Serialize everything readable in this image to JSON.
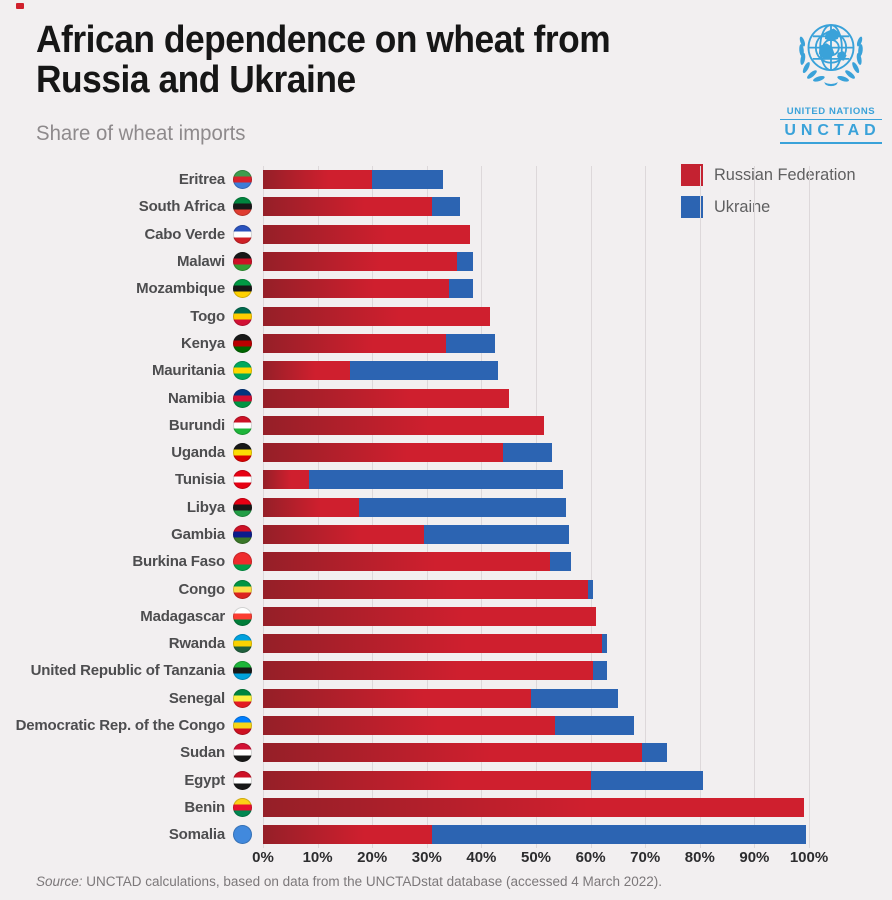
{
  "header": {
    "title_line1": "African dependence on wheat from",
    "title_line2": "Russia and Ukraine",
    "subtitle": "Share of wheat imports"
  },
  "logo": {
    "org": "UNITED NATIONS",
    "unit": "UNCTAD",
    "color": "#3aa2d9"
  },
  "legend": [
    {
      "label": "Russian Federation",
      "color": "#c42231"
    },
    {
      "label": "Ukraine",
      "color": "#2c64b2"
    }
  ],
  "colors": {
    "background": "#f2eff0",
    "russia": "#c42231",
    "russia_gradient_start": "#951f28",
    "russia_gradient_end": "#cf1f2e",
    "ukraine": "#2c64b2",
    "gridline": "#ddd8da"
  },
  "source": {
    "prefix": "Source:",
    "text": " UNCTAD calculations, based on data from the UNCTADstat database (accessed 4 March 2022)."
  },
  "chart_data": {
    "type": "bar",
    "orientation": "horizontal",
    "stacked": true,
    "title": "African dependence on wheat from Russia and Ukraine",
    "subtitle": "Share of wheat imports",
    "unit": "percent of wheat imports",
    "xlim": [
      0,
      100
    ],
    "x_ticks": [
      "0%",
      "10%",
      "20%",
      "30%",
      "40%",
      "50%",
      "60%",
      "70%",
      "80%",
      "90%",
      "100%"
    ],
    "grid": true,
    "legend_position": "top-right",
    "series_names": [
      "Russian Federation",
      "Ukraine"
    ],
    "countries": [
      {
        "name": "Eritrea",
        "russia": 20,
        "ukraine": 13,
        "flag": [
          "#3e9e4e",
          "#d8222c",
          "#3d7dd8"
        ]
      },
      {
        "name": "South Africa",
        "russia": 31,
        "ukraine": 5,
        "flag": [
          "#00853e",
          "#181818",
          "#e03c31"
        ]
      },
      {
        "name": "Cabo Verde",
        "russia": 38,
        "ukraine": 0,
        "flag": [
          "#2a52be",
          "#ffffff",
          "#cf2027"
        ]
      },
      {
        "name": "Malawi",
        "russia": 35.5,
        "ukraine": 3,
        "flag": [
          "#181818",
          "#ce1126",
          "#339e35"
        ]
      },
      {
        "name": "Mozambique",
        "russia": 34,
        "ukraine": 4.5,
        "flag": [
          "#009a44",
          "#181818",
          "#ffd100"
        ]
      },
      {
        "name": "Togo",
        "russia": 41.5,
        "ukraine": 0,
        "flag": [
          "#006a4e",
          "#ffce00",
          "#d21034"
        ]
      },
      {
        "name": "Kenya",
        "russia": 33.5,
        "ukraine": 9,
        "flag": [
          "#181818",
          "#bb0000",
          "#006600"
        ]
      },
      {
        "name": "Mauritania",
        "russia": 16,
        "ukraine": 27,
        "flag": [
          "#00a95c",
          "#ffd700",
          "#00a95c"
        ]
      },
      {
        "name": "Namibia",
        "russia": 45,
        "ukraine": 0,
        "flag": [
          "#003580",
          "#d21034",
          "#009543"
        ]
      },
      {
        "name": "Burundi",
        "russia": 51.5,
        "ukraine": 0,
        "flag": [
          "#ce1126",
          "#ffffff",
          "#1eb53a"
        ]
      },
      {
        "name": "Uganda",
        "russia": 44,
        "ukraine": 9,
        "flag": [
          "#181818",
          "#fcdc04",
          "#d90000"
        ]
      },
      {
        "name": "Tunisia",
        "russia": 8.5,
        "ukraine": 46.5,
        "flag": [
          "#e70013",
          "#ffffff",
          "#e70013"
        ]
      },
      {
        "name": "Libya",
        "russia": 17.5,
        "ukraine": 38,
        "flag": [
          "#e70013",
          "#181818",
          "#239e46"
        ]
      },
      {
        "name": "Gambia",
        "russia": 29.5,
        "ukraine": 26.5,
        "flag": [
          "#ce1126",
          "#0c1c8c",
          "#3a7728"
        ]
      },
      {
        "name": "Burkina Faso",
        "russia": 52.5,
        "ukraine": 4,
        "flag": [
          "#ef2b2d",
          "#ef2b2d",
          "#009e49"
        ]
      },
      {
        "name": "Congo",
        "russia": 59.5,
        "ukraine": 1,
        "flag": [
          "#009543",
          "#fbde4a",
          "#dc241f"
        ]
      },
      {
        "name": "Madagascar",
        "russia": 61,
        "ukraine": 0,
        "flag": [
          "#ffffff",
          "#fc3d32",
          "#007e3a"
        ]
      },
      {
        "name": "Rwanda",
        "russia": 62,
        "ukraine": 1,
        "flag": [
          "#00a1de",
          "#fad201",
          "#20603d"
        ]
      },
      {
        "name": "United Republic of Tanzania",
        "russia": 60.5,
        "ukraine": 2.5,
        "flag": [
          "#1eb53a",
          "#181818",
          "#00a3dd"
        ]
      },
      {
        "name": "Senegal",
        "russia": 49,
        "ukraine": 16,
        "flag": [
          "#00853f",
          "#fdef42",
          "#e31b23"
        ]
      },
      {
        "name": "Democratic Rep. of the Congo",
        "russia": 53.5,
        "ukraine": 14.5,
        "flag": [
          "#007fff",
          "#f7d618",
          "#ce1021"
        ]
      },
      {
        "name": "Sudan",
        "russia": 69.5,
        "ukraine": 4.5,
        "flag": [
          "#d21034",
          "#ffffff",
          "#181818"
        ]
      },
      {
        "name": "Egypt",
        "russia": 60,
        "ukraine": 20.5,
        "flag": [
          "#ce1126",
          "#ffffff",
          "#181818"
        ]
      },
      {
        "name": "Benin",
        "russia": 99,
        "ukraine": 0,
        "flag": [
          "#fcd116",
          "#e8112d",
          "#008751"
        ]
      },
      {
        "name": "Somalia",
        "russia": 31,
        "ukraine": 68.5,
        "flag": [
          "#4189dd",
          "#4189dd",
          "#4189dd"
        ]
      }
    ]
  }
}
